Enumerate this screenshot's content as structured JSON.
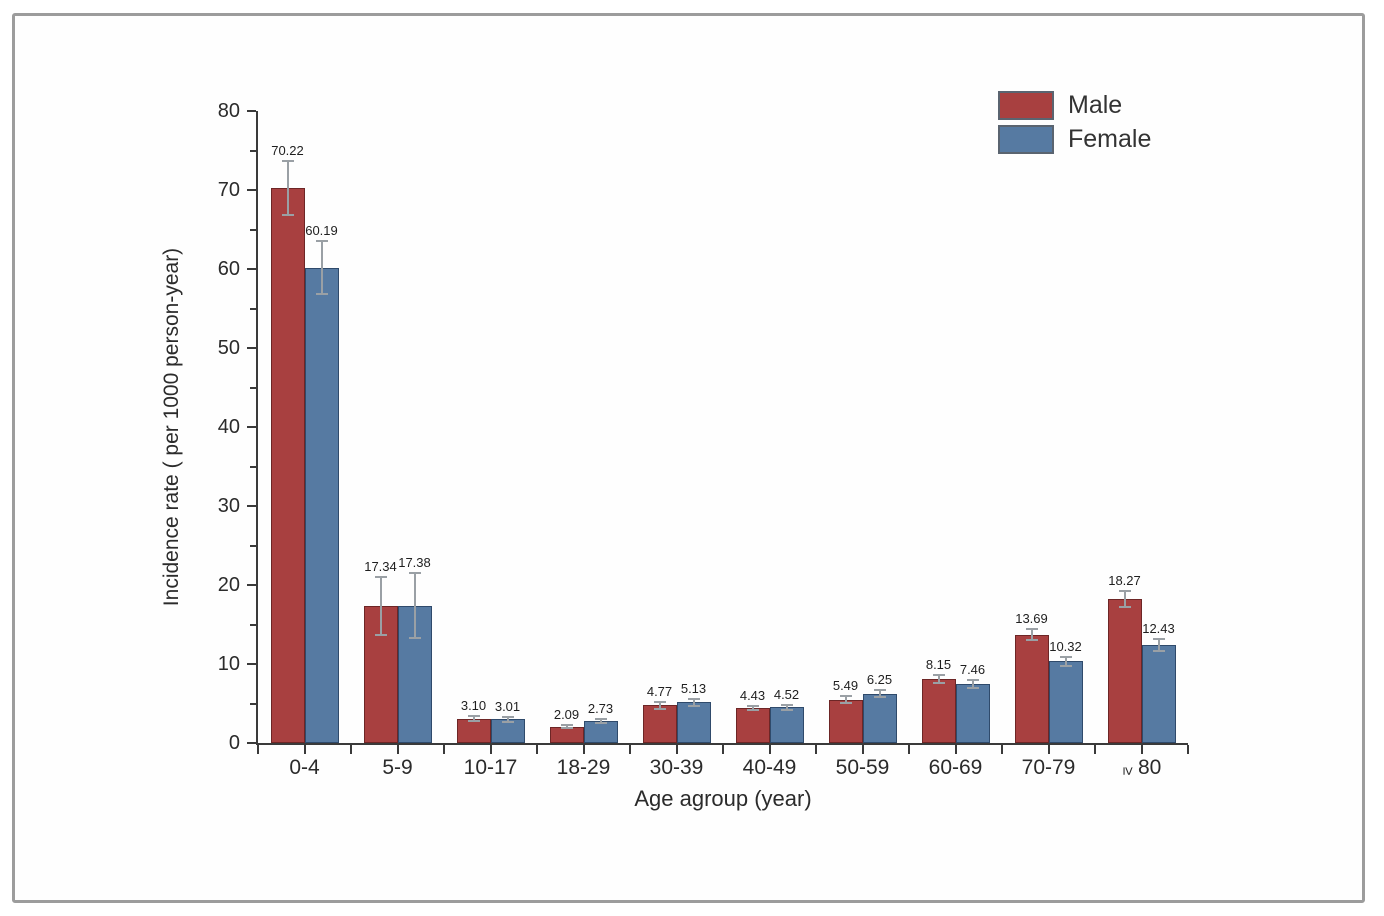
{
  "window": {
    "background": "#ffffff",
    "frame_border_color": "#9c9c9c"
  },
  "chart_data": {
    "type": "bar",
    "title": "",
    "xlabel": "Age agroup (year)",
    "ylabel": "Incidence rate  ( per 1000 person-year)",
    "categories": [
      "0-4",
      "5-9",
      "10-17",
      "18-29",
      "30-39",
      "40-49",
      "50-59",
      "60-69",
      "70-79",
      "≥ 80"
    ],
    "series": [
      {
        "name": "Male",
        "color": "#a84040",
        "border_color": "#6d2626",
        "values": [
          70.22,
          17.34,
          3.1,
          2.09,
          4.77,
          4.43,
          5.49,
          8.15,
          13.69,
          18.27
        ],
        "errors": [
          3.4,
          3.7,
          0.3,
          0.25,
          0.45,
          0.3,
          0.4,
          0.5,
          0.7,
          1.0
        ]
      },
      {
        "name": "Female",
        "color": "#567aa2",
        "border_color": "#2f4a6b",
        "values": [
          60.19,
          17.38,
          3.01,
          2.73,
          5.13,
          4.52,
          6.25,
          7.46,
          10.32,
          12.43
        ],
        "errors": [
          3.3,
          4.1,
          0.3,
          0.25,
          0.4,
          0.3,
          0.45,
          0.5,
          0.6,
          0.75
        ]
      }
    ],
    "ylim": [
      0,
      80
    ],
    "ytick_major": 10,
    "ytick_minor": 5,
    "value_label_decimals": 2,
    "error_bars": true,
    "grid": false,
    "legend_position": "top-right",
    "axis_color": "#3a3a3a",
    "error_bar_color": "#9aa0a5",
    "text_color": "#2b2b2b"
  }
}
